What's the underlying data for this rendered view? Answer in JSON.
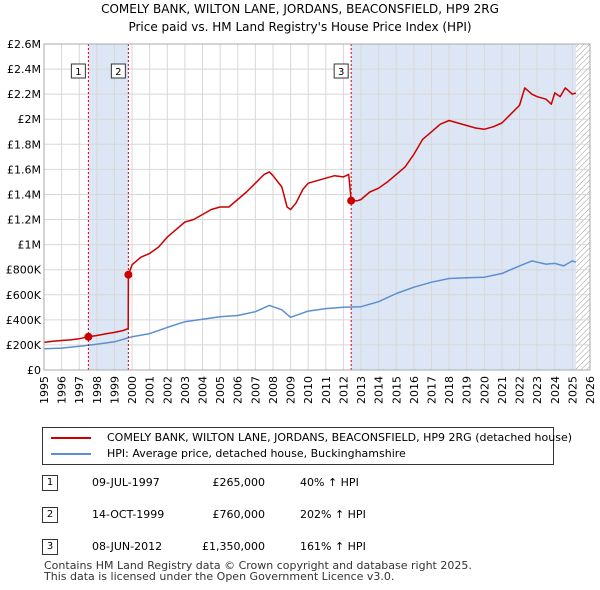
{
  "title_line1": "COMELY BANK, WILTON LANE, JORDANS, BEACONSFIELD, HP9 2RG",
  "title_line2": "Price paid vs. HM Land Registry's House Price Index (HPI)",
  "colors": {
    "price": "#cc0000",
    "hpi": "#5b8fcf",
    "shade": "#dde6f4"
  },
  "chart_data": {
    "type": "line",
    "xlim": [
      1995,
      2026
    ],
    "ylim": [
      0,
      2600000
    ],
    "yticks": [
      {
        "value": 0,
        "label": "£0"
      },
      {
        "value": 200000,
        "label": "£200K"
      },
      {
        "value": 400000,
        "label": "£400K"
      },
      {
        "value": 600000,
        "label": "£600K"
      },
      {
        "value": 800000,
        "label": "£800K"
      },
      {
        "value": 1000000,
        "label": "£1M"
      },
      {
        "value": 1200000,
        "label": "£1.2M"
      },
      {
        "value": 1400000,
        "label": "£1.4M"
      },
      {
        "value": 1600000,
        "label": "£1.6M"
      },
      {
        "value": 1800000,
        "label": "£1.8M"
      },
      {
        "value": 2000000,
        "label": "£2M"
      },
      {
        "value": 2200000,
        "label": "£2.2M"
      },
      {
        "value": 2400000,
        "label": "£2.4M"
      },
      {
        "value": 2600000,
        "label": "£2.6M"
      }
    ],
    "xticks": [
      "1995",
      "1996",
      "1997",
      "1998",
      "1999",
      "2000",
      "2001",
      "2002",
      "2003",
      "2004",
      "2005",
      "2006",
      "2007",
      "2008",
      "2009",
      "2010",
      "2011",
      "2012",
      "2013",
      "2014",
      "2015",
      "2016",
      "2017",
      "2018",
      "2019",
      "2020",
      "2021",
      "2022",
      "2023",
      "2024",
      "2025",
      "2026"
    ],
    "shaded_ranges": [
      [
        1997.52,
        1999.79
      ],
      [
        2012.44,
        2025.2
      ]
    ],
    "hatched_from": 2025.2,
    "series": [
      {
        "name": "COMELY BANK, WILTON LANE, JORDANS, BEACONSFIELD, HP9 2RG (detached house)",
        "color": "#cc0000",
        "x": [
          1995.0,
          1995.5,
          1996.0,
          1996.5,
          1997.0,
          1997.52,
          1998.0,
          1998.5,
          1999.0,
          1999.5,
          1999.78,
          1999.79,
          2000.0,
          2000.5,
          2001.0,
          2001.5,
          2002.0,
          2002.5,
          2003.0,
          2003.5,
          2004.0,
          2004.5,
          2005.0,
          2005.5,
          2006.0,
          2006.5,
          2007.0,
          2007.5,
          2007.8,
          2008.0,
          2008.5,
          2008.8,
          2009.0,
          2009.3,
          2009.7,
          2010.0,
          2010.5,
          2011.0,
          2011.5,
          2012.0,
          2012.3,
          2012.44,
          2012.8,
          2013.0,
          2013.5,
          2014.0,
          2014.5,
          2015.0,
          2015.5,
          2016.0,
          2016.5,
          2017.0,
          2017.5,
          2018.0,
          2018.5,
          2019.0,
          2019.5,
          2020.0,
          2020.5,
          2021.0,
          2021.5,
          2022.0,
          2022.3,
          2022.7,
          2023.0,
          2023.5,
          2023.8,
          2024.0,
          2024.3,
          2024.6,
          2025.0,
          2025.2
        ],
        "values": [
          220000,
          230000,
          235000,
          240000,
          250000,
          265000,
          275000,
          288000,
          300000,
          315000,
          330000,
          760000,
          840000,
          900000,
          930000,
          980000,
          1060000,
          1120000,
          1180000,
          1200000,
          1240000,
          1280000,
          1300000,
          1300000,
          1360000,
          1420000,
          1490000,
          1560000,
          1580000,
          1550000,
          1460000,
          1300000,
          1280000,
          1330000,
          1440000,
          1490000,
          1510000,
          1530000,
          1550000,
          1540000,
          1560000,
          1350000,
          1350000,
          1360000,
          1420000,
          1450000,
          1500000,
          1560000,
          1620000,
          1720000,
          1840000,
          1900000,
          1960000,
          1990000,
          1970000,
          1950000,
          1930000,
          1920000,
          1940000,
          1970000,
          2040000,
          2110000,
          2250000,
          2200000,
          2180000,
          2160000,
          2120000,
          2210000,
          2180000,
          2250000,
          2200000,
          2210000
        ]
      },
      {
        "name": "HPI: Average price, detached house, Buckinghamshire",
        "color": "#5b8fcf",
        "x": [
          1995.0,
          1996.0,
          1997.0,
          1998.0,
          1999.0,
          2000.0,
          2001.0,
          2002.0,
          2003.0,
          2004.0,
          2005.0,
          2006.0,
          2007.0,
          2007.8,
          2008.5,
          2009.0,
          2009.5,
          2010.0,
          2011.0,
          2012.0,
          2013.0,
          2014.0,
          2015.0,
          2016.0,
          2017.0,
          2018.0,
          2019.0,
          2020.0,
          2021.0,
          2022.0,
          2022.7,
          2023.0,
          2023.5,
          2024.0,
          2024.5,
          2025.0,
          2025.2
        ],
        "values": [
          170000,
          175000,
          190000,
          205000,
          225000,
          265000,
          290000,
          340000,
          385000,
          405000,
          425000,
          435000,
          465000,
          515000,
          480000,
          420000,
          445000,
          470000,
          490000,
          500000,
          505000,
          545000,
          610000,
          660000,
          700000,
          730000,
          735000,
          740000,
          770000,
          830000,
          870000,
          860000,
          845000,
          850000,
          830000,
          870000,
          860000
        ]
      }
    ],
    "sales": [
      {
        "label": "1",
        "x": 1997.52,
        "value": 265000
      },
      {
        "label": "2",
        "x": 1999.79,
        "value": 760000
      },
      {
        "label": "3",
        "x": 2012.44,
        "value": 1350000
      }
    ]
  },
  "legend": [
    {
      "label": "COMELY BANK, WILTON LANE, JORDANS, BEACONSFIELD, HP9 2RG (detached house)"
    },
    {
      "label": "HPI: Average price, detached house, Buckinghamshire"
    }
  ],
  "table": [
    {
      "num": "1",
      "date": "09-JUL-1997",
      "price": "£265,000",
      "pct": "40% ↑ HPI"
    },
    {
      "num": "2",
      "date": "14-OCT-1999",
      "price": "£760,000",
      "pct": "202% ↑ HPI"
    },
    {
      "num": "3",
      "date": "08-JUN-2012",
      "price": "£1,350,000",
      "pct": "161% ↑ HPI"
    }
  ],
  "footer_line1": "Contains HM Land Registry data © Crown copyright and database right 2025.",
  "footer_line2": "This data is licensed under the Open Government Licence v3.0."
}
